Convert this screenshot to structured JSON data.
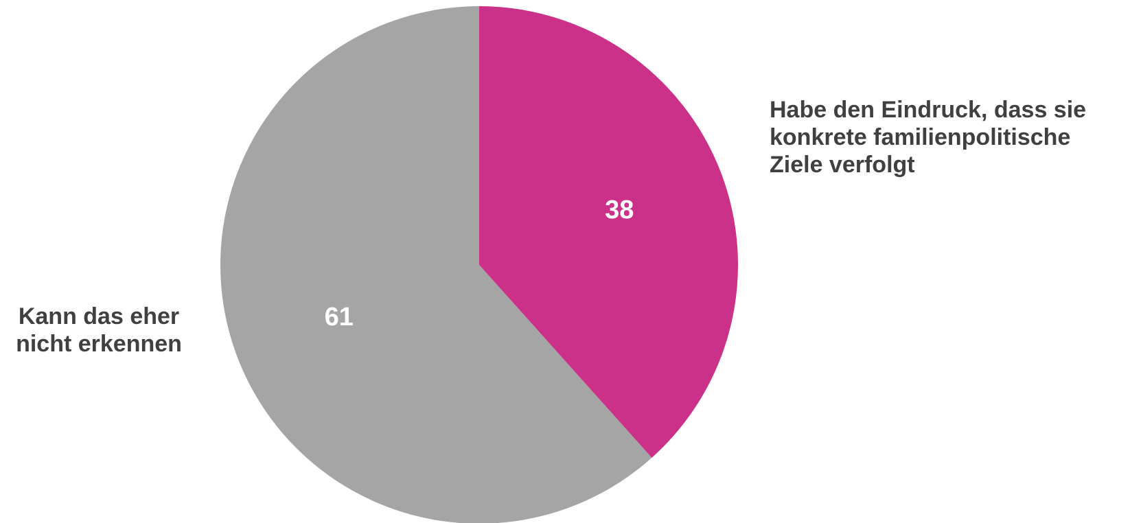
{
  "chart_data": {
    "type": "pie",
    "categories": [
      "Habe den Eindruck, dass sie konkrete familienpolitische Ziele verfolgt",
      "Kann das eher nicht erkennen"
    ],
    "values": [
      38,
      61
    ],
    "colors": [
      "#cc3189",
      "#a5a5a5"
    ]
  }
}
